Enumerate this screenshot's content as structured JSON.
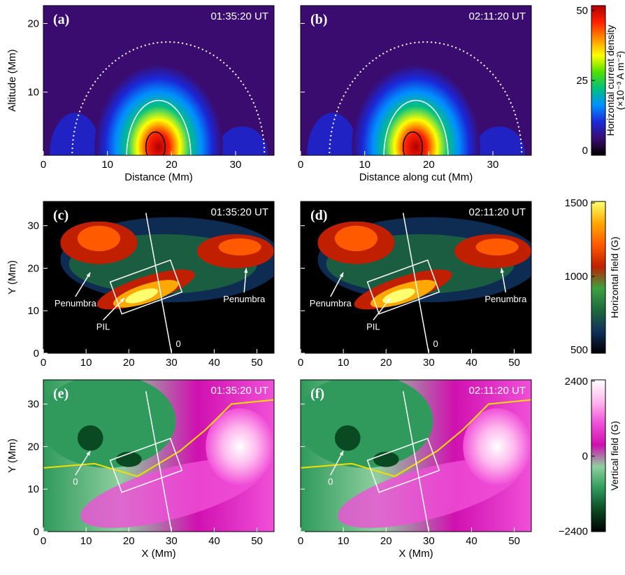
{
  "chart_data": [
    {
      "type": "heatmap",
      "label": "(a)",
      "time": "01:35:20 UT",
      "xlabel": "Distance (Mm)",
      "ylabel": "Altitude (Mm)",
      "xlim": [
        0,
        36
      ],
      "xticks": [
        0,
        10,
        20,
        30
      ],
      "ylim": [
        0.8,
        22.6
      ],
      "yticks": [
        10,
        20
      ]
    },
    {
      "type": "heatmap",
      "label": "(b)",
      "time": "02:11:20 UT",
      "xlabel": "Distance along cut (Mm)",
      "xlim": [
        0,
        36
      ],
      "xticks": [
        0,
        10,
        20,
        30
      ],
      "ylim": [
        0.8,
        22.6
      ],
      "yticks": [
        10,
        20
      ]
    },
    {
      "type": "heatmap",
      "label": "(c)",
      "time": "01:35:20 UT",
      "ylabel": "Y (Mm)",
      "xlim": [
        0,
        54
      ],
      "xticks": [
        0,
        10,
        20,
        30,
        40,
        50
      ],
      "ylim": [
        0,
        35.7
      ],
      "yticks": [
        0,
        10,
        20,
        30
      ],
      "annotations": [
        "Penumbra",
        "PIL",
        "Penumbra",
        "0"
      ]
    },
    {
      "type": "heatmap",
      "label": "(d)",
      "time": "02:11:20 UT",
      "xlim": [
        0,
        54
      ],
      "xticks": [
        0,
        10,
        20,
        30,
        40,
        50
      ],
      "ylim": [
        0,
        35.7
      ],
      "yticks": [
        0,
        10,
        20,
        30
      ],
      "annotations": [
        "Penumbra",
        "PIL",
        "Penumbra",
        "0"
      ]
    },
    {
      "type": "heatmap",
      "label": "(e)",
      "time": "01:35:20 UT",
      "xlabel": "X (Mm)",
      "ylabel": "Y (Mm)",
      "xlim": [
        0,
        54
      ],
      "xticks": [
        0,
        10,
        20,
        30,
        40,
        50
      ],
      "ylim": [
        0,
        35.7
      ],
      "yticks": [
        0,
        10,
        20,
        30
      ],
      "annotations": [
        "0"
      ]
    },
    {
      "type": "heatmap",
      "label": "(f)",
      "time": "02:11:20 UT",
      "xlabel": "X (Mm)",
      "xlim": [
        0,
        54
      ],
      "xticks": [
        0,
        10,
        20,
        30,
        40,
        50
      ],
      "ylim": [
        0,
        35.7
      ],
      "yticks": [
        0,
        10,
        20,
        30
      ],
      "annotations": [
        "0"
      ]
    },
    {
      "type": "colorbar",
      "label": [
        "Horizontal current density",
        "(×10⁻³ A m⁻²)"
      ],
      "ylim": [
        -1.75,
        51.75
      ],
      "yticks": [
        0,
        25,
        50
      ],
      "colors": [
        "#000000",
        "#3a0c70",
        "#1a28d8",
        "#0090ff",
        "#00c080",
        "#50e000",
        "#ffff00",
        "#ff9000",
        "#ff2000",
        "#b00000"
      ]
    },
    {
      "type": "colorbar",
      "label": [
        "Horizontal field (G)"
      ],
      "ylim": [
        476,
        1510
      ],
      "yticks": [
        500,
        1000,
        1500
      ],
      "colors": [
        "#000000",
        "#10305a",
        "#1f6a3c",
        "#3ea040",
        "#c02000",
        "#ff5a00",
        "#ffa800",
        "#ffff70"
      ]
    },
    {
      "type": "colorbar",
      "label": [
        "Vertical field (G)"
      ],
      "ylim": [
        -2414,
        2440
      ],
      "yticks": [
        {
          "value": -2400,
          "label": "−2400"
        },
        0,
        2400
      ],
      "colors": [
        "#000000",
        "#0a4a22",
        "#2f9a5c",
        "#8fcf9f",
        "#d010b0",
        "#f050d8",
        "#ffb8ee",
        "#ffffff"
      ]
    }
  ]
}
